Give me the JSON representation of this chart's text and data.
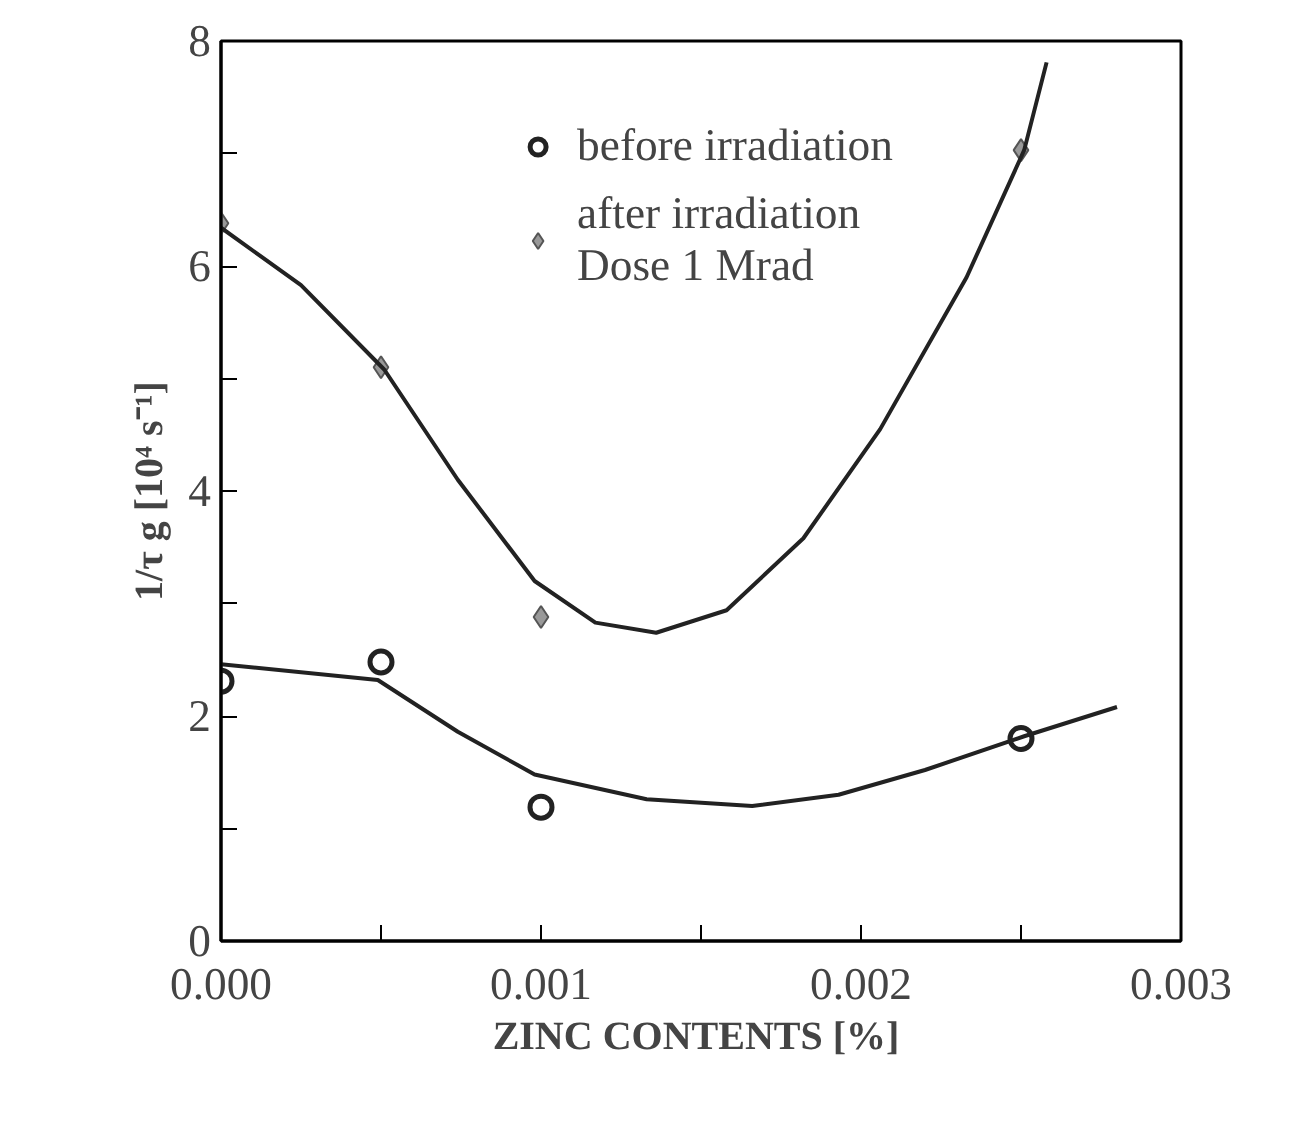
{
  "chart_data": {
    "type": "scatter",
    "xlabel": "ZINC CONTENTS  [%]",
    "ylabel": "1/τ g [10⁴ s⁻¹]",
    "xlim": [
      0,
      0.003
    ],
    "ylim": [
      0,
      8
    ],
    "xticks": [
      {
        "value": 0,
        "label": "0.000"
      },
      {
        "value": 0.0005,
        "label": null
      },
      {
        "value": 0.001,
        "label": "0.001"
      },
      {
        "value": 0.0015,
        "label": null
      },
      {
        "value": 0.002,
        "label": "0.002"
      },
      {
        "value": 0.0025,
        "label": null
      },
      {
        "value": 0.003,
        "label": "0.003"
      }
    ],
    "yticks": [
      0,
      {
        "value": 1,
        "label": null
      },
      2,
      {
        "value": 3,
        "label": null
      },
      4,
      {
        "value": 5,
        "label": null
      },
      6,
      {
        "value": 7,
        "label": null
      },
      8
    ],
    "grid": false,
    "legend": "top",
    "series": [
      {
        "name": "before irradiation",
        "marker": "circle",
        "color": "#222222",
        "x": [
          0,
          0.0005,
          0.001,
          0.0025
        ],
        "values": [
          2.31,
          2.48,
          1.19,
          1.8
        ]
      },
      {
        "name": "after irradiation\nDose 1 Mrad",
        "marker": "diamond",
        "color": "#555555",
        "x": [
          0,
          0.0005,
          0.001,
          0.0025
        ],
        "values": [
          6.38,
          5.1,
          2.88,
          7.03
        ]
      },
      {
        "type": "line",
        "line_style": "solid",
        "color": "#222222",
        "x": [
          0,
          0.00049,
          0.00074,
          0.00098,
          0.00133,
          0.00166,
          0.00193,
          0.0022,
          0.00251,
          0.0028
        ],
        "values": [
          2.46,
          2.32,
          1.86,
          1.48,
          1.26,
          1.2,
          1.3,
          1.52,
          1.82,
          2.08
        ]
      },
      {
        "type": "line",
        "line_style": "solid",
        "color": "#222222",
        "x": [
          0,
          0.00025,
          0.00051,
          0.00074,
          0.00098,
          0.00117,
          0.00136,
          0.00158,
          0.00182,
          0.00206,
          0.00233,
          0.00251,
          0.00258
        ],
        "values": [
          6.34,
          5.83,
          5.08,
          4.1,
          3.2,
          2.83,
          2.74,
          2.94,
          3.58,
          4.55,
          5.9,
          7.03,
          7.81
        ]
      }
    ]
  }
}
